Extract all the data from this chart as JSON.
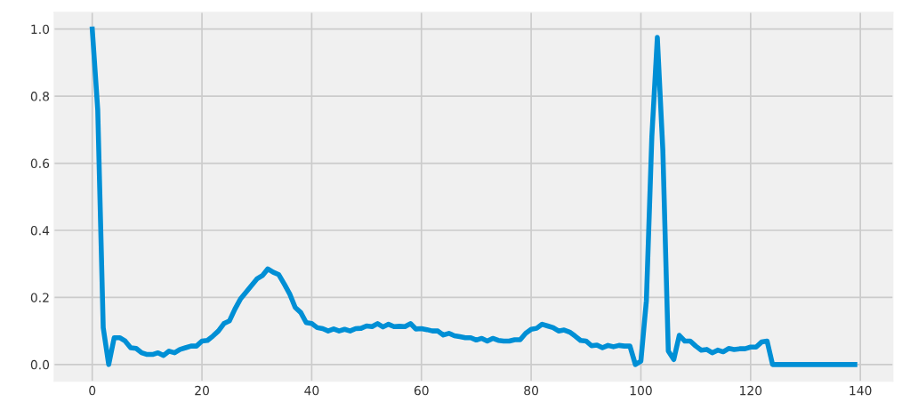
{
  "chart_data": {
    "type": "line",
    "x": [
      0,
      1,
      2,
      3,
      4,
      5,
      6,
      7,
      8,
      9,
      10,
      11,
      12,
      13,
      14,
      15,
      16,
      17,
      18,
      19,
      20,
      21,
      22,
      23,
      24,
      25,
      26,
      27,
      28,
      29,
      30,
      31,
      32,
      33,
      34,
      35,
      36,
      37,
      38,
      39,
      40,
      41,
      42,
      43,
      44,
      45,
      46,
      47,
      48,
      49,
      50,
      51,
      52,
      53,
      54,
      55,
      56,
      57,
      58,
      59,
      60,
      61,
      62,
      63,
      64,
      65,
      66,
      67,
      68,
      69,
      70,
      71,
      72,
      73,
      74,
      75,
      76,
      77,
      78,
      79,
      80,
      81,
      82,
      83,
      84,
      85,
      86,
      87,
      88,
      89,
      90,
      91,
      92,
      93,
      94,
      95,
      96,
      97,
      98,
      99,
      100,
      101,
      102,
      103,
      104,
      105,
      106,
      107,
      108,
      109,
      110,
      111,
      112,
      113,
      114,
      115,
      116,
      117,
      118,
      119,
      120,
      121,
      122,
      123,
      124,
      125,
      126,
      127,
      128,
      129,
      130,
      131,
      132,
      133,
      134,
      135,
      136,
      137,
      138,
      139
    ],
    "series": [
      {
        "color": "#008fd5",
        "values": [
          1.0,
          0.76,
          0.11,
          0.0,
          0.08,
          0.08,
          0.07,
          0.05,
          0.048,
          0.035,
          0.03,
          0.03,
          0.035,
          0.027,
          0.04,
          0.035,
          0.045,
          0.05,
          0.055,
          0.055,
          0.07,
          0.072,
          0.085,
          0.1,
          0.122,
          0.13,
          0.165,
          0.195,
          0.215,
          0.235,
          0.255,
          0.265,
          0.285,
          0.275,
          0.268,
          0.24,
          0.21,
          0.17,
          0.155,
          0.125,
          0.122,
          0.11,
          0.107,
          0.1,
          0.106,
          0.1,
          0.105,
          0.1,
          0.107,
          0.108,
          0.115,
          0.113,
          0.122,
          0.112,
          0.12,
          0.113,
          0.114,
          0.113,
          0.122,
          0.106,
          0.107,
          0.104,
          0.1,
          0.1,
          0.088,
          0.093,
          0.086,
          0.083,
          0.08,
          0.08,
          0.073,
          0.078,
          0.07,
          0.078,
          0.072,
          0.07,
          0.07,
          0.074,
          0.074,
          0.093,
          0.105,
          0.108,
          0.12,
          0.115,
          0.11,
          0.1,
          0.103,
          0.097,
          0.085,
          0.072,
          0.07,
          0.056,
          0.058,
          0.05,
          0.057,
          0.053,
          0.057,
          0.055,
          0.055,
          0.0,
          0.01,
          0.19,
          0.68,
          0.975,
          0.64,
          0.04,
          0.015,
          0.087,
          0.07,
          0.07,
          0.055,
          0.043,
          0.045,
          0.035,
          0.043,
          0.038,
          0.048,
          0.045,
          0.047,
          0.047,
          0.052,
          0.052,
          0.067,
          0.07,
          0,
          0,
          0,
          0,
          0,
          0,
          0,
          0,
          0,
          0,
          0,
          0,
          0,
          0,
          0,
          0
        ]
      }
    ],
    "xlim": [
      -6.95,
      145.95
    ],
    "ylim": [
      -0.05,
      1.05
    ],
    "xticks": [
      0,
      20,
      40,
      60,
      80,
      100,
      120,
      140
    ],
    "yticks": [
      {
        "value": 0,
        "label": "0.0"
      },
      {
        "value": 0.2,
        "label": "0.2"
      },
      {
        "value": 0.4,
        "label": "0.4"
      },
      {
        "value": 0.6,
        "label": "0.6"
      },
      {
        "value": 0.8,
        "label": "0.8"
      },
      {
        "value": 1.0,
        "label": "1.0"
      }
    ],
    "grid": true,
    "marker": "none",
    "line_style": "solid"
  }
}
